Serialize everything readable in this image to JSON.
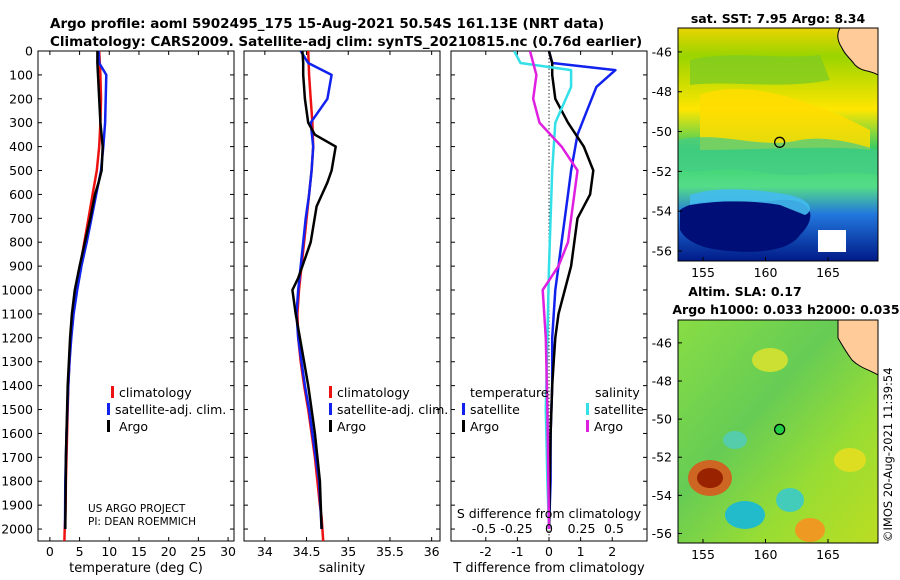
{
  "header": {
    "title_line1": "Argo profile: aoml 5902495_175 15-Aug-2021 50.54S 161.13E (NRT data)",
    "title_line2": "Climatology: CARS2009. Satellite-adj clim: synTS_20210815.nc (0.76d earlier)"
  },
  "credits": {
    "project": "US ARGO PROJECT",
    "pi": "PI: DEAN ROEMMICH",
    "stamp": "©IMOS 20-Aug-2021 11:39:54"
  },
  "colors": {
    "argo": "#000000",
    "climatology": "#ee1111",
    "satellite_clim": "#1122ee",
    "s_satellite": "#33e0e8",
    "s_argo": "#e020e0"
  },
  "chart_data": [
    {
      "type": "line",
      "xlabel": "temperature (deg C)",
      "ylabel": "",
      "xlim": [
        -2,
        31
      ],
      "ylim": [
        2050,
        0
      ],
      "xticks": [
        "0",
        "5",
        "10",
        "15",
        "20",
        "25",
        "30"
      ],
      "yticks": [
        "0",
        "100",
        "200",
        "300",
        "400",
        "500",
        "600",
        "700",
        "800",
        "900",
        "1000",
        "1100",
        "1200",
        "1300",
        "1400",
        "1500",
        "1600",
        "1700",
        "1800",
        "1900",
        "2000"
      ],
      "legend": {
        "placement": "center-right",
        "entries": [
          "climatology",
          "satellite-adj. clim.",
          "Argo"
        ]
      },
      "series": [
        {
          "name": "climatology",
          "x": [
            8.3,
            8.5,
            8.6,
            8.5,
            8.3,
            7.9,
            7.2,
            6.5,
            5.8,
            5.1,
            4.4,
            3.8,
            3.5,
            3.3,
            3.1,
            3.0,
            2.9,
            2.8,
            2.7,
            2.65,
            2.6,
            2.5,
            2.45
          ],
          "y": [
            0,
            100,
            200,
            300,
            400,
            500,
            600,
            700,
            800,
            900,
            1000,
            1100,
            1200,
            1300,
            1400,
            1500,
            1600,
            1700,
            1800,
            1900,
            1950,
            2000,
            2050
          ]
        },
        {
          "name": "satellite-adj. clim.",
          "x": [
            8.2,
            8.3,
            9.5,
            9.4,
            9.3,
            9.0,
            8.6,
            7.8,
            7.0,
            6.2,
            5.3,
            4.6,
            4.0,
            3.6,
            3.3,
            3.1,
            2.95,
            2.8,
            2.7,
            2.6,
            2.55
          ],
          "y": [
            0,
            50,
            100,
            200,
            300,
            400,
            500,
            600,
            700,
            800,
            900,
            1000,
            1100,
            1200,
            1300,
            1400,
            1500,
            1600,
            1700,
            1800,
            2000
          ]
        },
        {
          "name": "Argo",
          "x": [
            8.0,
            8.0,
            8.1,
            8.3,
            8.5,
            8.9,
            8.7,
            8.2,
            7.6,
            6.8,
            5.9,
            5.0,
            4.2,
            3.7,
            3.4,
            3.2,
            3.0,
            2.9,
            2.8,
            2.7,
            2.6
          ],
          "y": [
            0,
            50,
            100,
            200,
            300,
            400,
            500,
            550,
            600,
            700,
            800,
            900,
            1000,
            1100,
            1200,
            1300,
            1400,
            1500,
            1600,
            1700,
            2000
          ]
        }
      ]
    },
    {
      "type": "line",
      "xlabel": "salinity",
      "ylabel": "",
      "xlim": [
        33.75,
        36.1
      ],
      "ylim": [
        2050,
        0
      ],
      "xticks": [
        "34",
        "34.5",
        "35",
        "35.5",
        "36"
      ],
      "legend": {
        "placement": "center-right",
        "entries": [
          "climatology",
          "satellite-adj. clim.",
          "Argo"
        ]
      },
      "series": [
        {
          "name": "climatology",
          "x": [
            34.52,
            34.53,
            34.55,
            34.57,
            34.58,
            34.56,
            34.53,
            34.5,
            34.47,
            34.44,
            34.41,
            34.39,
            34.4,
            34.43,
            34.47,
            34.52,
            34.56,
            34.6,
            34.63,
            34.66,
            34.68,
            34.69,
            34.7
          ],
          "y": [
            0,
            100,
            200,
            300,
            400,
            500,
            600,
            700,
            800,
            900,
            1000,
            1100,
            1200,
            1300,
            1400,
            1500,
            1600,
            1700,
            1800,
            1900,
            1950,
            2000,
            2050
          ]
        },
        {
          "name": "satellite-adj. clim.",
          "x": [
            34.43,
            34.52,
            34.8,
            34.75,
            34.55,
            34.58,
            34.56,
            34.53,
            34.49,
            34.46,
            34.43,
            34.4,
            34.38,
            34.4,
            34.44,
            34.48,
            34.53,
            34.57,
            34.61,
            34.65,
            34.68
          ],
          "y": [
            0,
            50,
            100,
            200,
            300,
            400,
            500,
            600,
            700,
            800,
            900,
            1000,
            1100,
            1200,
            1300,
            1400,
            1500,
            1600,
            1700,
            1800,
            2000
          ]
        },
        {
          "name": "Argo",
          "x": [
            34.45,
            34.46,
            34.46,
            34.48,
            34.52,
            34.6,
            34.85,
            34.8,
            34.75,
            34.62,
            34.55,
            34.45,
            34.4,
            34.33,
            34.37,
            34.42,
            34.47,
            34.52,
            34.56,
            34.6,
            34.63,
            34.66,
            34.68
          ],
          "y": [
            0,
            50,
            100,
            200,
            300,
            350,
            400,
            500,
            550,
            650,
            800,
            900,
            950,
            1000,
            1100,
            1200,
            1300,
            1400,
            1500,
            1600,
            1700,
            1800,
            2000
          ]
        }
      ]
    },
    {
      "type": "line",
      "xlabel": "T difference from climatology",
      "xlabel_top": "S difference from climatology",
      "ylabel": "",
      "xlim": [
        -3.1,
        3.1
      ],
      "ylim": [
        2050,
        0
      ],
      "xticks": [
        "-2",
        "-1",
        "0",
        "1",
        "2"
      ],
      "xticks_top": [
        "-0.5",
        "-0.25",
        "0",
        "0.25",
        "0.5"
      ],
      "legend": {
        "placement": "center",
        "temperature_title": "temperature",
        "salinity_title": "salinity",
        "entries": [
          "satellite",
          "Argo",
          "satellite",
          "Argo"
        ]
      },
      "series": [
        {
          "name": "temperature satellite",
          "x": [
            0,
            0.1,
            2.1,
            1.5,
            1.2,
            0.9,
            0.7,
            0.6,
            0.5,
            0.4,
            0.3,
            0.2,
            0.1,
            0.1,
            0.05,
            0.05,
            0.0
          ],
          "y": [
            0,
            50,
            80,
            150,
            250,
            350,
            500,
            600,
            700,
            800,
            900,
            1000,
            1200,
            1400,
            1600,
            1800,
            2000
          ]
        },
        {
          "name": "temperature Argo",
          "x": [
            0,
            0.1,
            0.1,
            0.2,
            0.6,
            1.1,
            1.4,
            1.3,
            0.9,
            0.8,
            0.7,
            0.5,
            0.3,
            0.2,
            0.15,
            0.1,
            0.05,
            0.0
          ],
          "y": [
            0,
            50,
            100,
            200,
            300,
            400,
            500,
            600,
            700,
            800,
            900,
            1000,
            1100,
            1200,
            1300,
            1400,
            1600,
            2000
          ]
        },
        {
          "name": "salinity satellite",
          "x": [
            -1.1,
            -0.9,
            0.7,
            0.7,
            0.2,
            0.1,
            0.05,
            0.0,
            -0.05,
            -0.1,
            -0.05,
            0.0
          ],
          "y": [
            0,
            50,
            80,
            150,
            300,
            500,
            700,
            900,
            1200,
            1500,
            1800,
            2000
          ]
        },
        {
          "name": "salinity Argo",
          "x": [
            -0.6,
            -0.5,
            -0.4,
            -0.5,
            -0.3,
            0.4,
            0.9,
            0.8,
            0.7,
            0.6,
            0.3,
            -0.2,
            -0.1,
            -0.05,
            0.0
          ],
          "y": [
            0,
            50,
            100,
            200,
            300,
            400,
            500,
            600,
            700,
            800,
            900,
            1000,
            1200,
            1500,
            2000
          ]
        }
      ]
    },
    {
      "type": "heatmap",
      "title": "sat. SST: 7.95 Argo: 8.34",
      "xlim": [
        153,
        169
      ],
      "ylim": [
        -56.5,
        -44.8
      ],
      "xticks": [
        "155",
        "160",
        "165"
      ],
      "yticks": [
        "-46",
        "-48",
        "-50",
        "-52",
        "-54",
        "-56"
      ],
      "argo_position": {
        "lon": 161.13,
        "lat": -50.54
      }
    },
    {
      "type": "heatmap",
      "title_line1": "Altim. SLA: 0.17",
      "title_line2": "Argo h1000: 0.033 h2000: 0.035",
      "xlim": [
        153,
        169
      ],
      "ylim": [
        -56.5,
        -44.8
      ],
      "xticks": [
        "155",
        "160",
        "165"
      ],
      "yticks": [
        "-46",
        "-48",
        "-50",
        "-52",
        "-54",
        "-56"
      ],
      "argo_position": {
        "lon": 161.13,
        "lat": -50.54
      }
    }
  ]
}
